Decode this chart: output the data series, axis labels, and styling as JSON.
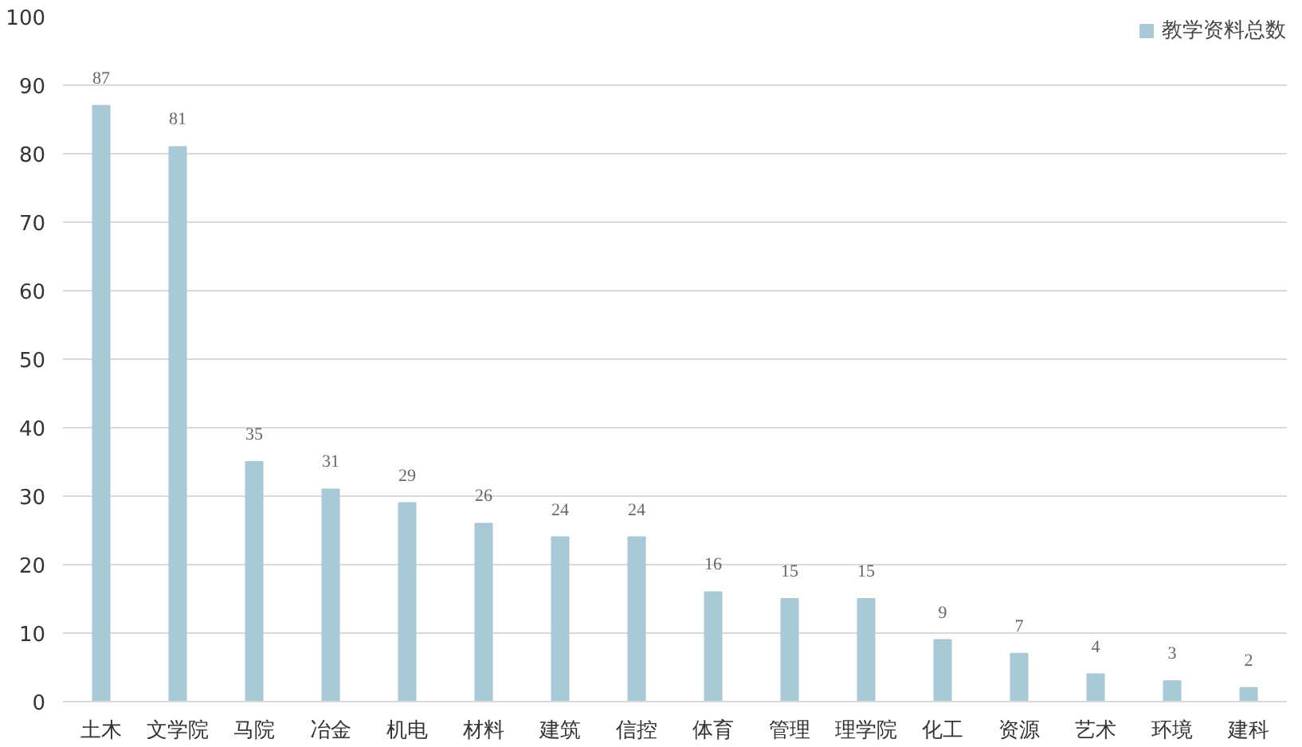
{
  "chart_data": {
    "type": "bar",
    "categories": [
      "土木",
      "文学院",
      "马院",
      "冶金",
      "机电",
      "材料",
      "建筑",
      "信控",
      "体育",
      "管理",
      "理学院",
      "化工",
      "资源",
      "艺术",
      "环境",
      "建科"
    ],
    "series": [
      {
        "name": "教学资料总数",
        "color": "#a9c8d6",
        "values": [
          87,
          81,
          35,
          31,
          29,
          26,
          24,
          24,
          16,
          15,
          15,
          9,
          7,
          4,
          3,
          2
        ]
      }
    ],
    "ylim": [
      0,
      100
    ],
    "yticks": [
      0,
      10,
      20,
      30,
      40,
      50,
      60,
      70,
      80,
      90,
      100
    ],
    "grid": "y",
    "legend": "top right",
    "data_labels": true
  }
}
